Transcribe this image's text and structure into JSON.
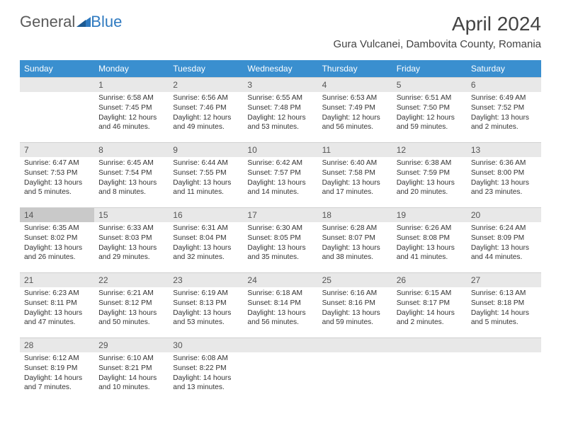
{
  "brand": {
    "part1": "General",
    "part2": "Blue"
  },
  "title": "April 2024",
  "location": "Gura Vulcanei, Dambovita County, Romania",
  "day_headers": [
    "Sunday",
    "Monday",
    "Tuesday",
    "Wednesday",
    "Thursday",
    "Friday",
    "Saturday"
  ],
  "colors": {
    "header_bg": "#3a8fcf",
    "header_fg": "#ffffff",
    "daybar_bg": "#e8e8e8",
    "daybar_dark_bg": "#c9c9c9",
    "text": "#333333",
    "brand_gray": "#5a5a5a",
    "brand_blue": "#2f7ac0"
  },
  "weeks": [
    [
      {
        "n": "",
        "sr": "",
        "ss": "",
        "dl": ""
      },
      {
        "n": "1",
        "sr": "Sunrise: 6:58 AM",
        "ss": "Sunset: 7:45 PM",
        "dl": "Daylight: 12 hours and 46 minutes."
      },
      {
        "n": "2",
        "sr": "Sunrise: 6:56 AM",
        "ss": "Sunset: 7:46 PM",
        "dl": "Daylight: 12 hours and 49 minutes."
      },
      {
        "n": "3",
        "sr": "Sunrise: 6:55 AM",
        "ss": "Sunset: 7:48 PM",
        "dl": "Daylight: 12 hours and 53 minutes."
      },
      {
        "n": "4",
        "sr": "Sunrise: 6:53 AM",
        "ss": "Sunset: 7:49 PM",
        "dl": "Daylight: 12 hours and 56 minutes."
      },
      {
        "n": "5",
        "sr": "Sunrise: 6:51 AM",
        "ss": "Sunset: 7:50 PM",
        "dl": "Daylight: 12 hours and 59 minutes."
      },
      {
        "n": "6",
        "sr": "Sunrise: 6:49 AM",
        "ss": "Sunset: 7:52 PM",
        "dl": "Daylight: 13 hours and 2 minutes."
      }
    ],
    [
      {
        "n": "7",
        "sr": "Sunrise: 6:47 AM",
        "ss": "Sunset: 7:53 PM",
        "dl": "Daylight: 13 hours and 5 minutes."
      },
      {
        "n": "8",
        "sr": "Sunrise: 6:45 AM",
        "ss": "Sunset: 7:54 PM",
        "dl": "Daylight: 13 hours and 8 minutes."
      },
      {
        "n": "9",
        "sr": "Sunrise: 6:44 AM",
        "ss": "Sunset: 7:55 PM",
        "dl": "Daylight: 13 hours and 11 minutes."
      },
      {
        "n": "10",
        "sr": "Sunrise: 6:42 AM",
        "ss": "Sunset: 7:57 PM",
        "dl": "Daylight: 13 hours and 14 minutes."
      },
      {
        "n": "11",
        "sr": "Sunrise: 6:40 AM",
        "ss": "Sunset: 7:58 PM",
        "dl": "Daylight: 13 hours and 17 minutes."
      },
      {
        "n": "12",
        "sr": "Sunrise: 6:38 AM",
        "ss": "Sunset: 7:59 PM",
        "dl": "Daylight: 13 hours and 20 minutes."
      },
      {
        "n": "13",
        "sr": "Sunrise: 6:36 AM",
        "ss": "Sunset: 8:00 PM",
        "dl": "Daylight: 13 hours and 23 minutes."
      }
    ],
    [
      {
        "n": "14",
        "sr": "Sunrise: 6:35 AM",
        "ss": "Sunset: 8:02 PM",
        "dl": "Daylight: 13 hours and 26 minutes.",
        "dark": true
      },
      {
        "n": "15",
        "sr": "Sunrise: 6:33 AM",
        "ss": "Sunset: 8:03 PM",
        "dl": "Daylight: 13 hours and 29 minutes."
      },
      {
        "n": "16",
        "sr": "Sunrise: 6:31 AM",
        "ss": "Sunset: 8:04 PM",
        "dl": "Daylight: 13 hours and 32 minutes."
      },
      {
        "n": "17",
        "sr": "Sunrise: 6:30 AM",
        "ss": "Sunset: 8:05 PM",
        "dl": "Daylight: 13 hours and 35 minutes."
      },
      {
        "n": "18",
        "sr": "Sunrise: 6:28 AM",
        "ss": "Sunset: 8:07 PM",
        "dl": "Daylight: 13 hours and 38 minutes."
      },
      {
        "n": "19",
        "sr": "Sunrise: 6:26 AM",
        "ss": "Sunset: 8:08 PM",
        "dl": "Daylight: 13 hours and 41 minutes."
      },
      {
        "n": "20",
        "sr": "Sunrise: 6:24 AM",
        "ss": "Sunset: 8:09 PM",
        "dl": "Daylight: 13 hours and 44 minutes."
      }
    ],
    [
      {
        "n": "21",
        "sr": "Sunrise: 6:23 AM",
        "ss": "Sunset: 8:11 PM",
        "dl": "Daylight: 13 hours and 47 minutes."
      },
      {
        "n": "22",
        "sr": "Sunrise: 6:21 AM",
        "ss": "Sunset: 8:12 PM",
        "dl": "Daylight: 13 hours and 50 minutes."
      },
      {
        "n": "23",
        "sr": "Sunrise: 6:19 AM",
        "ss": "Sunset: 8:13 PM",
        "dl": "Daylight: 13 hours and 53 minutes."
      },
      {
        "n": "24",
        "sr": "Sunrise: 6:18 AM",
        "ss": "Sunset: 8:14 PM",
        "dl": "Daylight: 13 hours and 56 minutes."
      },
      {
        "n": "25",
        "sr": "Sunrise: 6:16 AM",
        "ss": "Sunset: 8:16 PM",
        "dl": "Daylight: 13 hours and 59 minutes."
      },
      {
        "n": "26",
        "sr": "Sunrise: 6:15 AM",
        "ss": "Sunset: 8:17 PM",
        "dl": "Daylight: 14 hours and 2 minutes."
      },
      {
        "n": "27",
        "sr": "Sunrise: 6:13 AM",
        "ss": "Sunset: 8:18 PM",
        "dl": "Daylight: 14 hours and 5 minutes."
      }
    ],
    [
      {
        "n": "28",
        "sr": "Sunrise: 6:12 AM",
        "ss": "Sunset: 8:19 PM",
        "dl": "Daylight: 14 hours and 7 minutes."
      },
      {
        "n": "29",
        "sr": "Sunrise: 6:10 AM",
        "ss": "Sunset: 8:21 PM",
        "dl": "Daylight: 14 hours and 10 minutes."
      },
      {
        "n": "30",
        "sr": "Sunrise: 6:08 AM",
        "ss": "Sunset: 8:22 PM",
        "dl": "Daylight: 14 hours and 13 minutes."
      },
      {
        "n": "",
        "sr": "",
        "ss": "",
        "dl": ""
      },
      {
        "n": "",
        "sr": "",
        "ss": "",
        "dl": ""
      },
      {
        "n": "",
        "sr": "",
        "ss": "",
        "dl": ""
      },
      {
        "n": "",
        "sr": "",
        "ss": "",
        "dl": ""
      }
    ]
  ]
}
